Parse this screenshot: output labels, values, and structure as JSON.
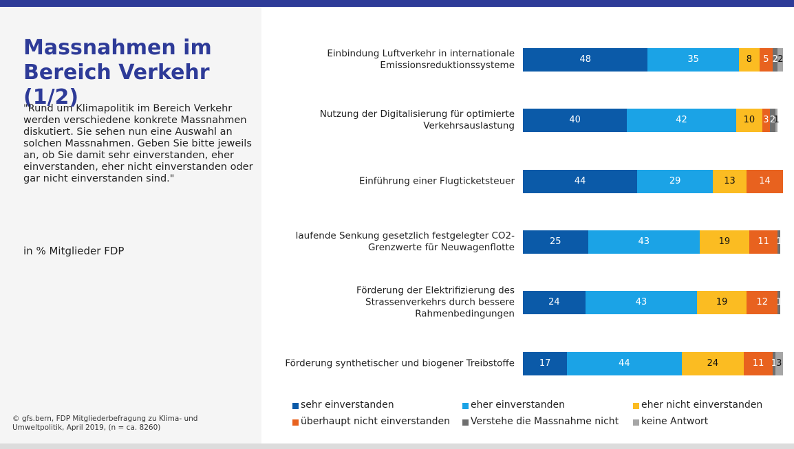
{
  "chart_data": {
    "type": "stacked_bar_horizontal",
    "title": "Massnahmen im Bereich Verkehr (1/2)",
    "subtitle": "\"Rund um Klimapolitik im Bereich Verkehr werden verschiedene konkrete Massnahmen diskutiert. Sie sehen nun eine Auswahl an solchen Massnahmen. Geben Sie bitte jeweils an, ob Sie damit sehr einverstanden, eher einverstanden, eher nicht einverstanden oder gar nicht einverstanden sind.\"",
    "unit_note": "in % Mitglieder FDP",
    "source": "© gfs.bern, FDP Mitgliederbefragung zu Klima- und Umweltpolitik, April 2019, (n = ca. 8260)",
    "categories": [
      "Einbindung Luftverkehr in internationale Emissionsreduktionssysteme",
      "Nutzung der Digitalisierung für optimierte Verkehrsauslastung",
      "Einführung einer Flugticketsteuer",
      "laufende Senkung gesetzlich festgelegter CO2-Grenzwerte für Neuwagenflotte",
      "Förderung der Elektrifizierung des Strassenverkehrs durch bessere Rahmenbedingungen",
      "Förderung synthetischer und biogener Treibstoffe"
    ],
    "series": [
      {
        "name": "sehr einverstanden",
        "color": "#0b5aa8",
        "values": [
          48,
          40,
          44,
          25,
          24,
          17
        ]
      },
      {
        "name": "eher einverstanden",
        "color": "#1ba3e6",
        "values": [
          35,
          42,
          29,
          43,
          43,
          44
        ]
      },
      {
        "name": "eher nicht einverstanden",
        "color": "#fbbc22",
        "values": [
          8,
          10,
          13,
          19,
          19,
          24
        ]
      },
      {
        "name": "überhaupt nicht einverstanden",
        "color": "#e8621f",
        "values": [
          5,
          3,
          14,
          11,
          12,
          11
        ]
      },
      {
        "name": "Verstehe die Massnahme nicht",
        "color": "#6f6f6f",
        "values": [
          2,
          2,
          null,
          1,
          1,
          1
        ]
      },
      {
        "name": "keine Antwort",
        "color": "#a6a6a6",
        "values": [
          2,
          1,
          null,
          null,
          null,
          3
        ]
      }
    ],
    "xlim": [
      0,
      100
    ]
  }
}
